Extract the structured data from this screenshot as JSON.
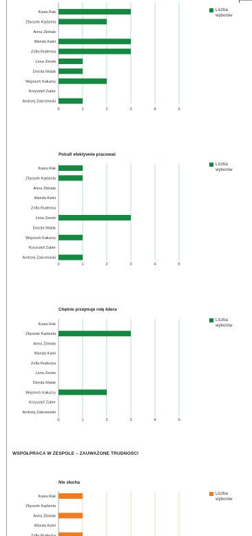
{
  "section_heading": "WSPÓŁPRACA W ZESPOLE – ZAUWAŻONE TRUDNOŚCI",
  "chart_data": [
    {
      "type": "bar",
      "orientation": "horizontal",
      "title": "",
      "categories": [
        "Kasia Rak",
        "Zbyszek Kądziela",
        "Anna Zbiniak",
        "Wanda Kalei",
        "Zofia Rudecka",
        "Lena Zenek",
        "Dorota Malak",
        "Wojciech Kałużny",
        "Krzysztof Zuber",
        "Andrzej Zakrzewski"
      ],
      "series": [
        {
          "name": "Liczba wyborów",
          "values": [
            3,
            2,
            0,
            3,
            3,
            1,
            1,
            2,
            0,
            1
          ]
        }
      ],
      "xlim": [
        0,
        5
      ],
      "ticks": [
        "0",
        "1",
        "2",
        "3",
        "4",
        "5"
      ],
      "color": "#138a3f",
      "grid_color": "#a9d9bf",
      "legend": "right"
    },
    {
      "type": "bar",
      "orientation": "horizontal",
      "title": "Potrafi efektywnie pracować",
      "categories": [
        "Kasia Rak",
        "Zbyszek Kądziela",
        "Anna Zbiniak",
        "Wanda Kalei",
        "Zofia Rudecka",
        "Lena Zenek",
        "Dorota Malak",
        "Wojciech Kałużny",
        "Krzysztof Zuber",
        "Andrzej Zakrzewski"
      ],
      "series": [
        {
          "name": "Liczba wyborów",
          "values": [
            1,
            1,
            0,
            0,
            0,
            3,
            0,
            1,
            0,
            1
          ]
        }
      ],
      "xlim": [
        0,
        5
      ],
      "ticks": [
        "0",
        "1",
        "2",
        "3",
        "4",
        "5"
      ],
      "color": "#138a3f",
      "grid_color": "#a9d9bf",
      "legend": "right"
    },
    {
      "type": "bar",
      "orientation": "horizontal",
      "title": "Chętnie przejmuje rolę lidera",
      "categories": [
        "Kasia Rak",
        "Zbyszek Kądziela",
        "Anna Zbiniak",
        "Wanda Kalei",
        "Zofia Rudecka",
        "Lena Zenek",
        "Dorota Malak",
        "Wojciech Kałużny",
        "Krzysztof Zuber",
        "Andrzej Zakrzewski"
      ],
      "series": [
        {
          "name": "Liczba wyborów",
          "values": [
            0,
            3,
            0,
            0,
            0,
            0,
            0,
            2,
            0,
            0
          ]
        }
      ],
      "xlim": [
        0,
        5
      ],
      "ticks": [
        "0",
        "1",
        "2",
        "3",
        "4",
        "5"
      ],
      "color": "#138a3f",
      "grid_color": "#a9d9bf",
      "legend": "right"
    },
    {
      "type": "bar",
      "orientation": "horizontal",
      "title": "Nie słucha",
      "categories": [
        "Kasia Rak",
        "Zbyszek Kądziela",
        "Anna Zbiniak",
        "Wanda Kalei",
        "Zofia Rudecka"
      ],
      "series": [
        {
          "name": "Liczba wyborów",
          "values": [
            1,
            0,
            1,
            0,
            1
          ]
        }
      ],
      "xlim": [
        0,
        5
      ],
      "ticks": [],
      "color": "#f07c1f",
      "grid_color": "#f6c9a3",
      "legend": "right"
    }
  ]
}
